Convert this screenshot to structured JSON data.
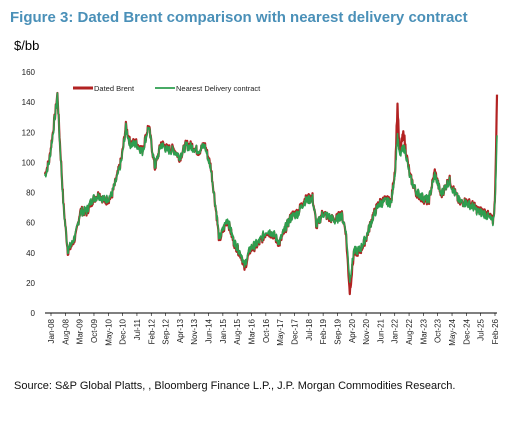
{
  "title": "Figure 3: Dated Brent comparison with nearest delivery contract",
  "unit": "$/bb",
  "source": "Source: S&P Global Platts, , Bloomberg Finance L.P., J.P. Morgan Commodities Research.",
  "colors": {
    "title": "#4a90b8",
    "dated_brent": "#b22222",
    "nearest_delivery": "#2e9e4f"
  },
  "chart_data": {
    "type": "line",
    "xlabel": "",
    "ylabel": "",
    "ylim": [
      0,
      160
    ],
    "yticks": [
      0,
      20,
      40,
      60,
      80,
      100,
      120,
      140,
      160
    ],
    "x_tick_labels": [
      "Jan-08",
      "Aug-08",
      "Mar-09",
      "Oct-09",
      "May-10",
      "Dec-10",
      "Jul-11",
      "Feb-12",
      "Sep-12",
      "Apr-13",
      "Nov-13",
      "Jun-14",
      "Jan-15",
      "Aug-15",
      "Mar-16",
      "Oct-16",
      "May-17",
      "Dec-17",
      "Jul-18",
      "Feb-19",
      "Sep-19",
      "Apr-20",
      "Nov-20",
      "Jun-21",
      "Jan-22",
      "Aug-22",
      "Mar-23",
      "Oct-23",
      "May-24",
      "Dec-24",
      "Jul-25",
      "Feb-26"
    ],
    "grid": false,
    "legend_position": "top",
    "series": [
      {
        "name": "Dated Brent",
        "x": [
          "2008-01",
          "2008-03",
          "2008-05",
          "2008-07",
          "2008-08",
          "2008-10",
          "2008-12",
          "2009-02",
          "2009-04",
          "2009-06",
          "2009-09",
          "2009-12",
          "2010-03",
          "2010-06",
          "2010-09",
          "2010-12",
          "2011-02",
          "2011-04",
          "2011-06",
          "2011-09",
          "2011-12",
          "2012-03",
          "2012-06",
          "2012-09",
          "2012-12",
          "2013-03",
          "2013-06",
          "2013-09",
          "2013-12",
          "2014-03",
          "2014-06",
          "2014-09",
          "2014-12",
          "2015-01",
          "2015-05",
          "2015-08",
          "2015-12",
          "2016-01",
          "2016-04",
          "2016-08",
          "2016-12",
          "2017-03",
          "2017-06",
          "2017-09",
          "2017-12",
          "2018-03",
          "2018-06",
          "2018-10",
          "2018-12",
          "2019-03",
          "2019-06",
          "2019-09",
          "2019-12",
          "2020-02",
          "2020-04",
          "2020-06",
          "2020-09",
          "2020-12",
          "2021-03",
          "2021-06",
          "2021-09",
          "2021-12",
          "2022-02",
          "2022-03",
          "2022-04",
          "2022-06",
          "2022-07",
          "2022-09",
          "2022-12",
          "2023-03",
          "2023-06",
          "2023-09",
          "2023-12",
          "2024-04",
          "2024-06",
          "2024-09",
          "2024-12",
          "2025-03",
          "2025-06",
          "2025-09",
          "2025-12",
          "2026-01",
          "2026-02",
          "2026-03"
        ],
        "values": [
          92,
          101,
          122,
          145,
          118,
          70,
          41,
          45,
          52,
          68,
          67,
          75,
          79,
          74,
          77,
          92,
          103,
          124,
          113,
          113,
          108,
          125,
          96,
          113,
          109,
          109,
          103,
          112,
          111,
          107,
          112,
          97,
          62,
          48,
          62,
          47,
          37,
          29,
          42,
          46,
          54,
          52,
          46,
          56,
          65,
          67,
          75,
          77,
          57,
          67,
          63,
          62,
          66,
          55,
          14,
          40,
          41,
          50,
          64,
          73,
          75,
          74,
          98,
          138,
          106,
          120,
          108,
          91,
          80,
          76,
          74,
          94,
          78,
          89,
          82,
          73,
          74,
          72,
          68,
          67,
          63,
          61,
          73,
          145
        ]
      },
      {
        "name": "Nearest Delivery contract",
        "x": [
          "2008-01",
          "2008-03",
          "2008-05",
          "2008-07",
          "2008-08",
          "2008-10",
          "2008-12",
          "2009-02",
          "2009-04",
          "2009-06",
          "2009-09",
          "2009-12",
          "2010-03",
          "2010-06",
          "2010-09",
          "2010-12",
          "2011-02",
          "2011-04",
          "2011-06",
          "2011-09",
          "2011-12",
          "2012-03",
          "2012-06",
          "2012-09",
          "2012-12",
          "2013-03",
          "2013-06",
          "2013-09",
          "2013-12",
          "2014-03",
          "2014-06",
          "2014-09",
          "2014-12",
          "2015-01",
          "2015-05",
          "2015-08",
          "2015-12",
          "2016-01",
          "2016-04",
          "2016-08",
          "2016-12",
          "2017-03",
          "2017-06",
          "2017-09",
          "2017-12",
          "2018-03",
          "2018-06",
          "2018-10",
          "2018-12",
          "2019-03",
          "2019-06",
          "2019-09",
          "2019-12",
          "2020-02",
          "2020-04",
          "2020-06",
          "2020-09",
          "2020-12",
          "2021-03",
          "2021-06",
          "2021-09",
          "2021-12",
          "2022-02",
          "2022-03",
          "2022-04",
          "2022-06",
          "2022-07",
          "2022-09",
          "2022-12",
          "2023-03",
          "2023-06",
          "2023-09",
          "2023-12",
          "2024-04",
          "2024-06",
          "2024-09",
          "2024-12",
          "2025-03",
          "2025-06",
          "2025-09",
          "2025-12",
          "2026-01",
          "2026-02",
          "2026-03"
        ],
        "values": [
          91,
          100,
          121,
          145,
          117,
          69,
          42,
          46,
          53,
          67,
          68,
          76,
          78,
          75,
          78,
          91,
          102,
          123,
          112,
          112,
          107,
          124,
          97,
          112,
          108,
          108,
          104,
          111,
          110,
          108,
          111,
          96,
          63,
          49,
          63,
          48,
          38,
          31,
          43,
          47,
          55,
          53,
          47,
          57,
          64,
          66,
          74,
          76,
          58,
          66,
          64,
          61,
          65,
          56,
          22,
          41,
          42,
          51,
          63,
          72,
          74,
          73,
          96,
          118,
          104,
          110,
          106,
          90,
          81,
          77,
          75,
          92,
          79,
          88,
          81,
          74,
          73,
          71,
          67,
          66,
          62,
          60,
          72,
          118
        ]
      }
    ]
  }
}
